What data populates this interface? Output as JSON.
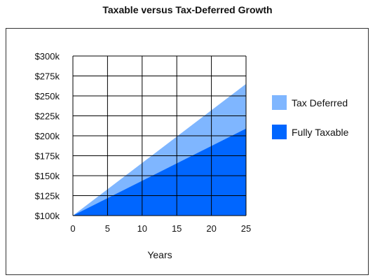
{
  "chart_data": {
    "type": "area",
    "title": "Taxable versus Tax-Deferred Growth",
    "xlabel": "Years",
    "ylabel": "",
    "x": [
      0,
      25
    ],
    "xticks": [
      0,
      5,
      10,
      15,
      20,
      25
    ],
    "xlim": [
      0,
      25
    ],
    "yticks": [
      100,
      125,
      150,
      175,
      200,
      225,
      250,
      275,
      300
    ],
    "ytick_labels": [
      "$100k",
      "$125k",
      "$150k",
      "$175k",
      "$200k",
      "$225k",
      "$250k",
      "$275k",
      "$300k"
    ],
    "ylim": [
      100,
      300
    ],
    "grid": true,
    "legend_position": "right",
    "series": [
      {
        "name": "Tax Deferred",
        "values": [
          100,
          265
        ],
        "color": "#7fb6ff"
      },
      {
        "name": "Fully Taxable",
        "values": [
          100,
          209
        ],
        "color": "#0066ff"
      }
    ]
  }
}
